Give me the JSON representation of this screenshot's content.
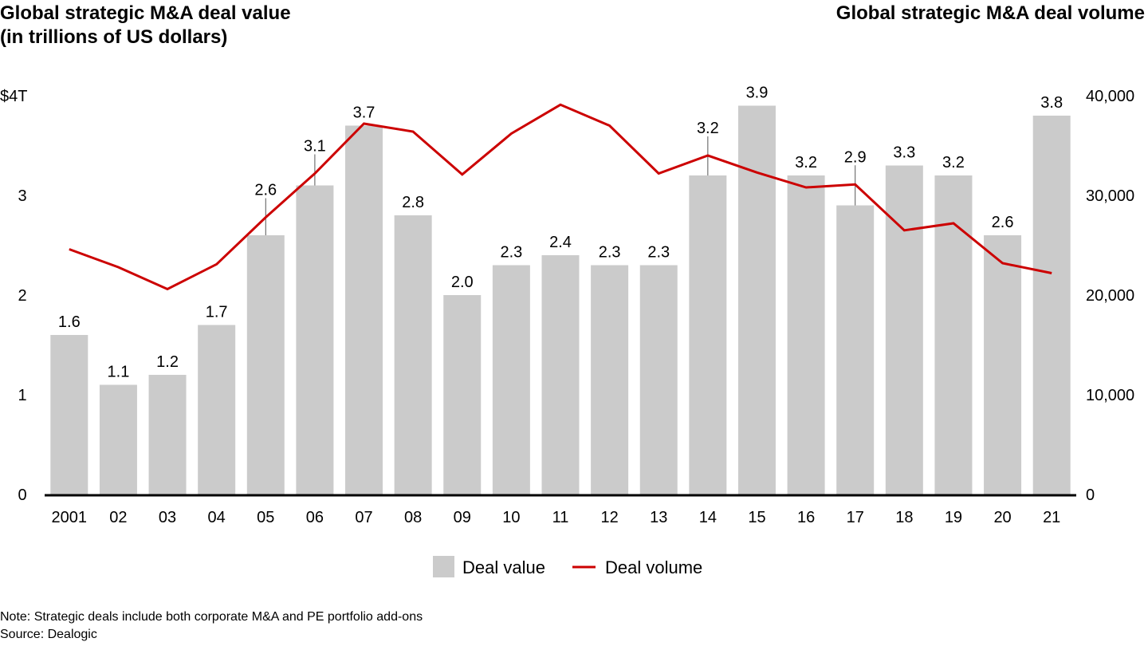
{
  "titles": {
    "left_line1": "Global strategic M&A deal value",
    "left_line2": "(in trillions of US dollars)",
    "right": "Global strategic M&A deal volume"
  },
  "notes": {
    "note": "Note: Strategic deals include both corporate M&A and PE portfolio add-ons",
    "source": "Source: Dealogic"
  },
  "chart_data": {
    "type": "bar",
    "categories": [
      "2001",
      "02",
      "03",
      "04",
      "05",
      "06",
      "07",
      "08",
      "09",
      "10",
      "11",
      "12",
      "13",
      "14",
      "15",
      "16",
      "17",
      "18",
      "19",
      "20",
      "21"
    ],
    "series": [
      {
        "name": "Deal value",
        "type": "bar",
        "axis": "left",
        "color": "#cbcbcb",
        "values": [
          1.6,
          1.1,
          1.2,
          1.7,
          2.6,
          3.1,
          3.7,
          2.8,
          2.0,
          2.3,
          2.4,
          2.3,
          2.3,
          3.2,
          3.9,
          3.2,
          2.9,
          3.3,
          3.2,
          2.6,
          3.8
        ],
        "labels": [
          "1.6",
          "1.1",
          "1.2",
          "1.7",
          "2.6",
          "3.1",
          "3.7",
          "2.8",
          "2.0",
          "2.3",
          "2.4",
          "2.3",
          "2.3",
          "3.2",
          "3.9",
          "3.2",
          "2.9",
          "3.3",
          "3.2",
          "2.6",
          "3.8"
        ]
      },
      {
        "name": "Deal volume",
        "type": "line",
        "axis": "right",
        "color": "#cc0000",
        "values": [
          24600,
          22800,
          20600,
          23100,
          27800,
          32200,
          37200,
          36400,
          32100,
          36200,
          39100,
          37000,
          32200,
          34000,
          32300,
          30800,
          31100,
          26500,
          27200,
          23200,
          22200
        ]
      }
    ],
    "left_axis": {
      "ylim": [
        0,
        4
      ],
      "ticks": [
        "0",
        "1",
        "2",
        "3",
        "$4T"
      ],
      "tick_values": [
        0,
        1,
        2,
        3,
        4
      ]
    },
    "right_axis": {
      "ylim": [
        0,
        40000
      ],
      "ticks": [
        "0",
        "10,000",
        "20,000",
        "30,000",
        "40,000"
      ],
      "tick_values": [
        0,
        10000,
        20000,
        30000,
        40000
      ]
    },
    "leader_lines_for": [
      "05",
      "06",
      "14",
      "17"
    ],
    "legend": {
      "position": "bottom-center",
      "entries": [
        "Deal value",
        "Deal volume"
      ]
    },
    "grid": false,
    "xlabel": "",
    "ylabel_left": "Global strategic M&A deal value (in trillions of US dollars)",
    "ylabel_right": "Global strategic M&A deal volume"
  }
}
